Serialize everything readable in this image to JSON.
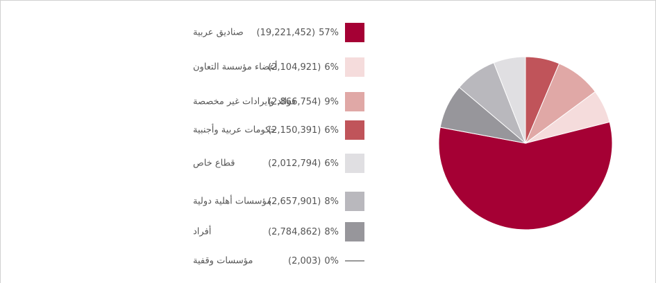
{
  "chart_data": {
    "type": "pie",
    "categories": [
      "صناديق عربية",
      "أعضاء مؤسسة التعاون",
      "فوائد وايرادات غير مخصصة",
      "حكومات عربية وأجنبية",
      "قطاع خاص",
      "مؤسسات أهلية دولية",
      "أفراد",
      "مؤسسات وقفية"
    ],
    "values": [
      19221452,
      2104921,
      2866754,
      2150391,
      2012794,
      2657901,
      2784862,
      2003
    ],
    "value_labels": [
      "(19,221,452)",
      "(2,104,921)",
      "(2,866,754)",
      "(2,150,391)",
      "(2,012,794)",
      "(2,657,901)",
      "(2,784,862)",
      "(2,003)"
    ],
    "percents": [
      57,
      6,
      9,
      6,
      6,
      8,
      8,
      0
    ],
    "percent_labels": [
      "57%",
      "6%",
      "9%",
      "6%",
      "6%",
      "8%",
      "8%",
      "0%"
    ],
    "colors": [
      "#a50034",
      "#f5dcdc",
      "#e0a8a6",
      "#c0545a",
      "#e0dfe2",
      "#b9b8bd",
      "#97969b",
      "#333333"
    ]
  }
}
